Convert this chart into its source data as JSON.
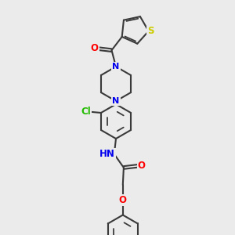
{
  "bg_color": "#ebebeb",
  "bond_color": "#3a3a3a",
  "bond_width": 1.5,
  "atom_colors": {
    "O": "#ff0000",
    "N": "#0000ee",
    "S": "#cccc00",
    "Cl": "#22bb00",
    "C": "#3a3a3a",
    "H": "#888888"
  },
  "font_size": 8.5
}
